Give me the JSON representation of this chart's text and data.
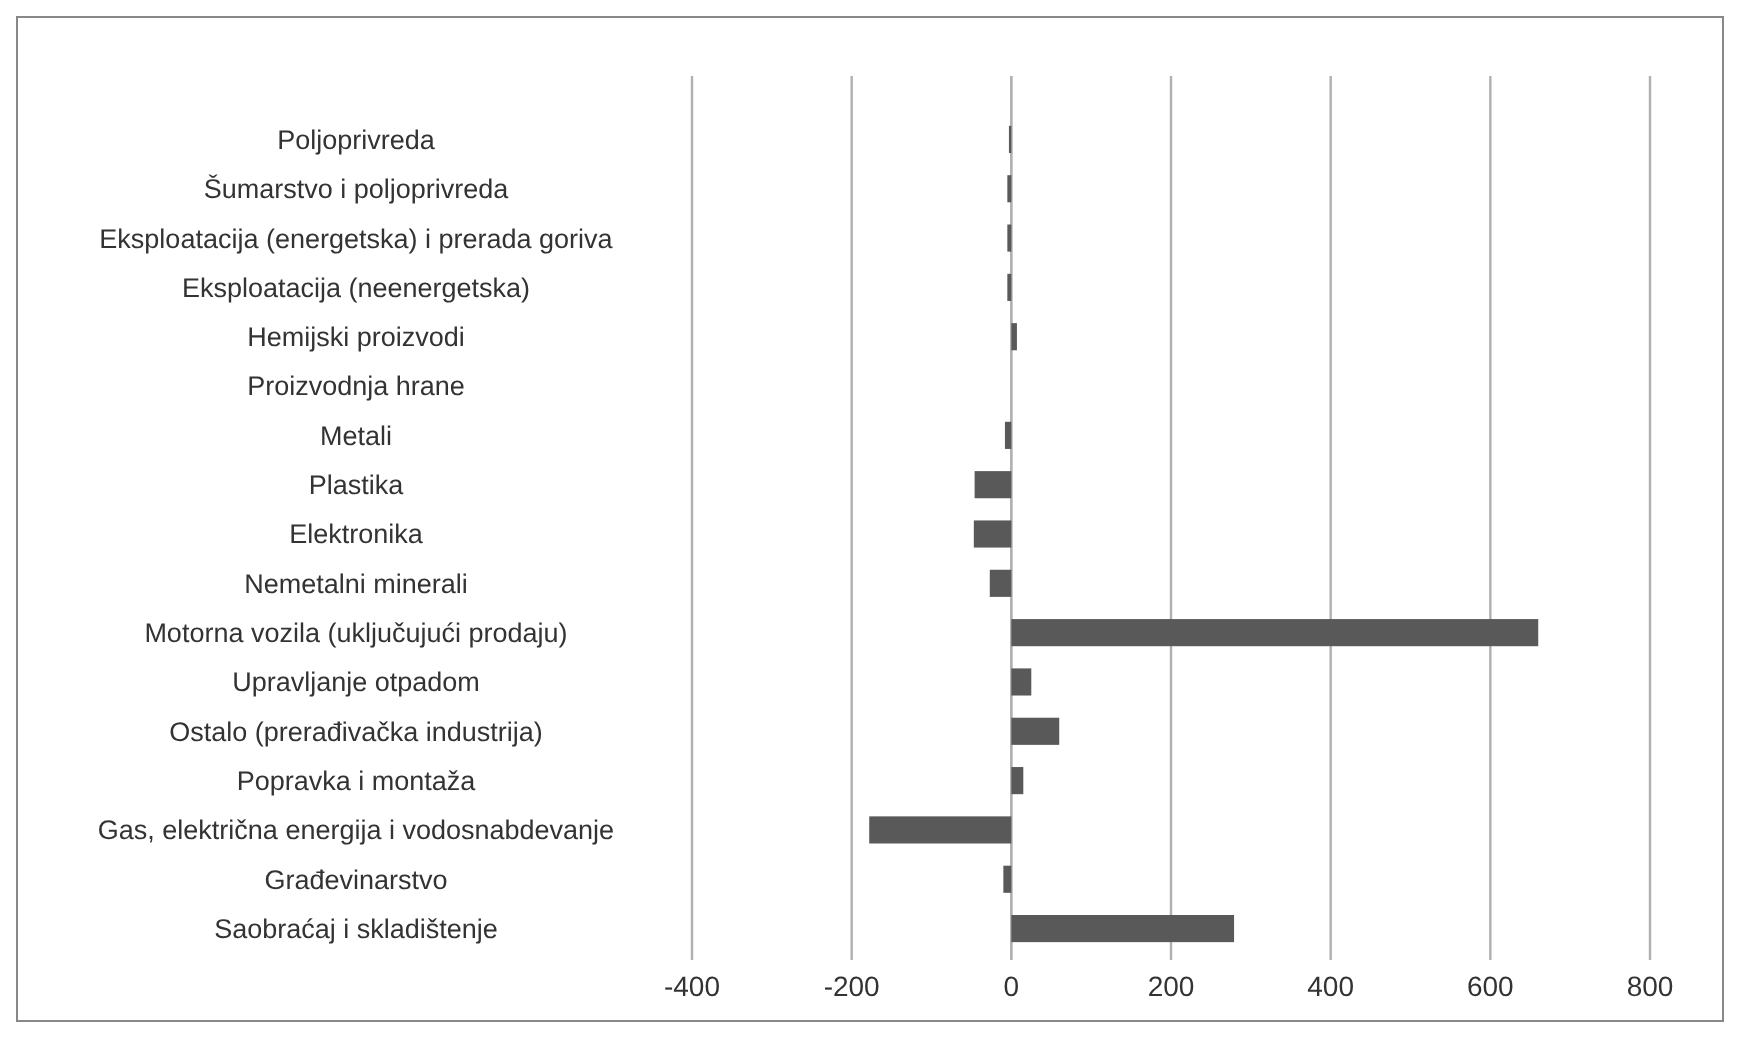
{
  "chart_data": {
    "type": "bar",
    "orientation": "horizontal",
    "categories": [
      "Poljoprivreda",
      "Šumarstvo i poljoprivreda",
      "Eksploatacija (energetska) i prerada goriva",
      "Eksploatacija (neenergetska)",
      "Hemijski proizvodi",
      "Proizvodnja hrane",
      "Metali ",
      "Plastika ",
      "Elektronika ",
      "Nemetalni minerali",
      "Motorna vozila (uključujući prodaju)",
      "Upravljanje otpadom",
      "Ostalo (prerađivačka industrija)",
      "Popravka i montaža",
      "Gas, električna energija i vodosnabdevanje",
      "Građevinarstvo",
      "Saobraćaj i skladištenje"
    ],
    "values": [
      -3,
      -5,
      -5,
      -5,
      7,
      null,
      -8,
      -46,
      -47,
      -27,
      660,
      25,
      60,
      15,
      -178,
      -10,
      279
    ],
    "color": "#595959",
    "xlim": [
      -400,
      800
    ],
    "xticks": [
      -400,
      -200,
      0,
      200,
      400,
      600,
      800
    ],
    "grid": "x"
  }
}
